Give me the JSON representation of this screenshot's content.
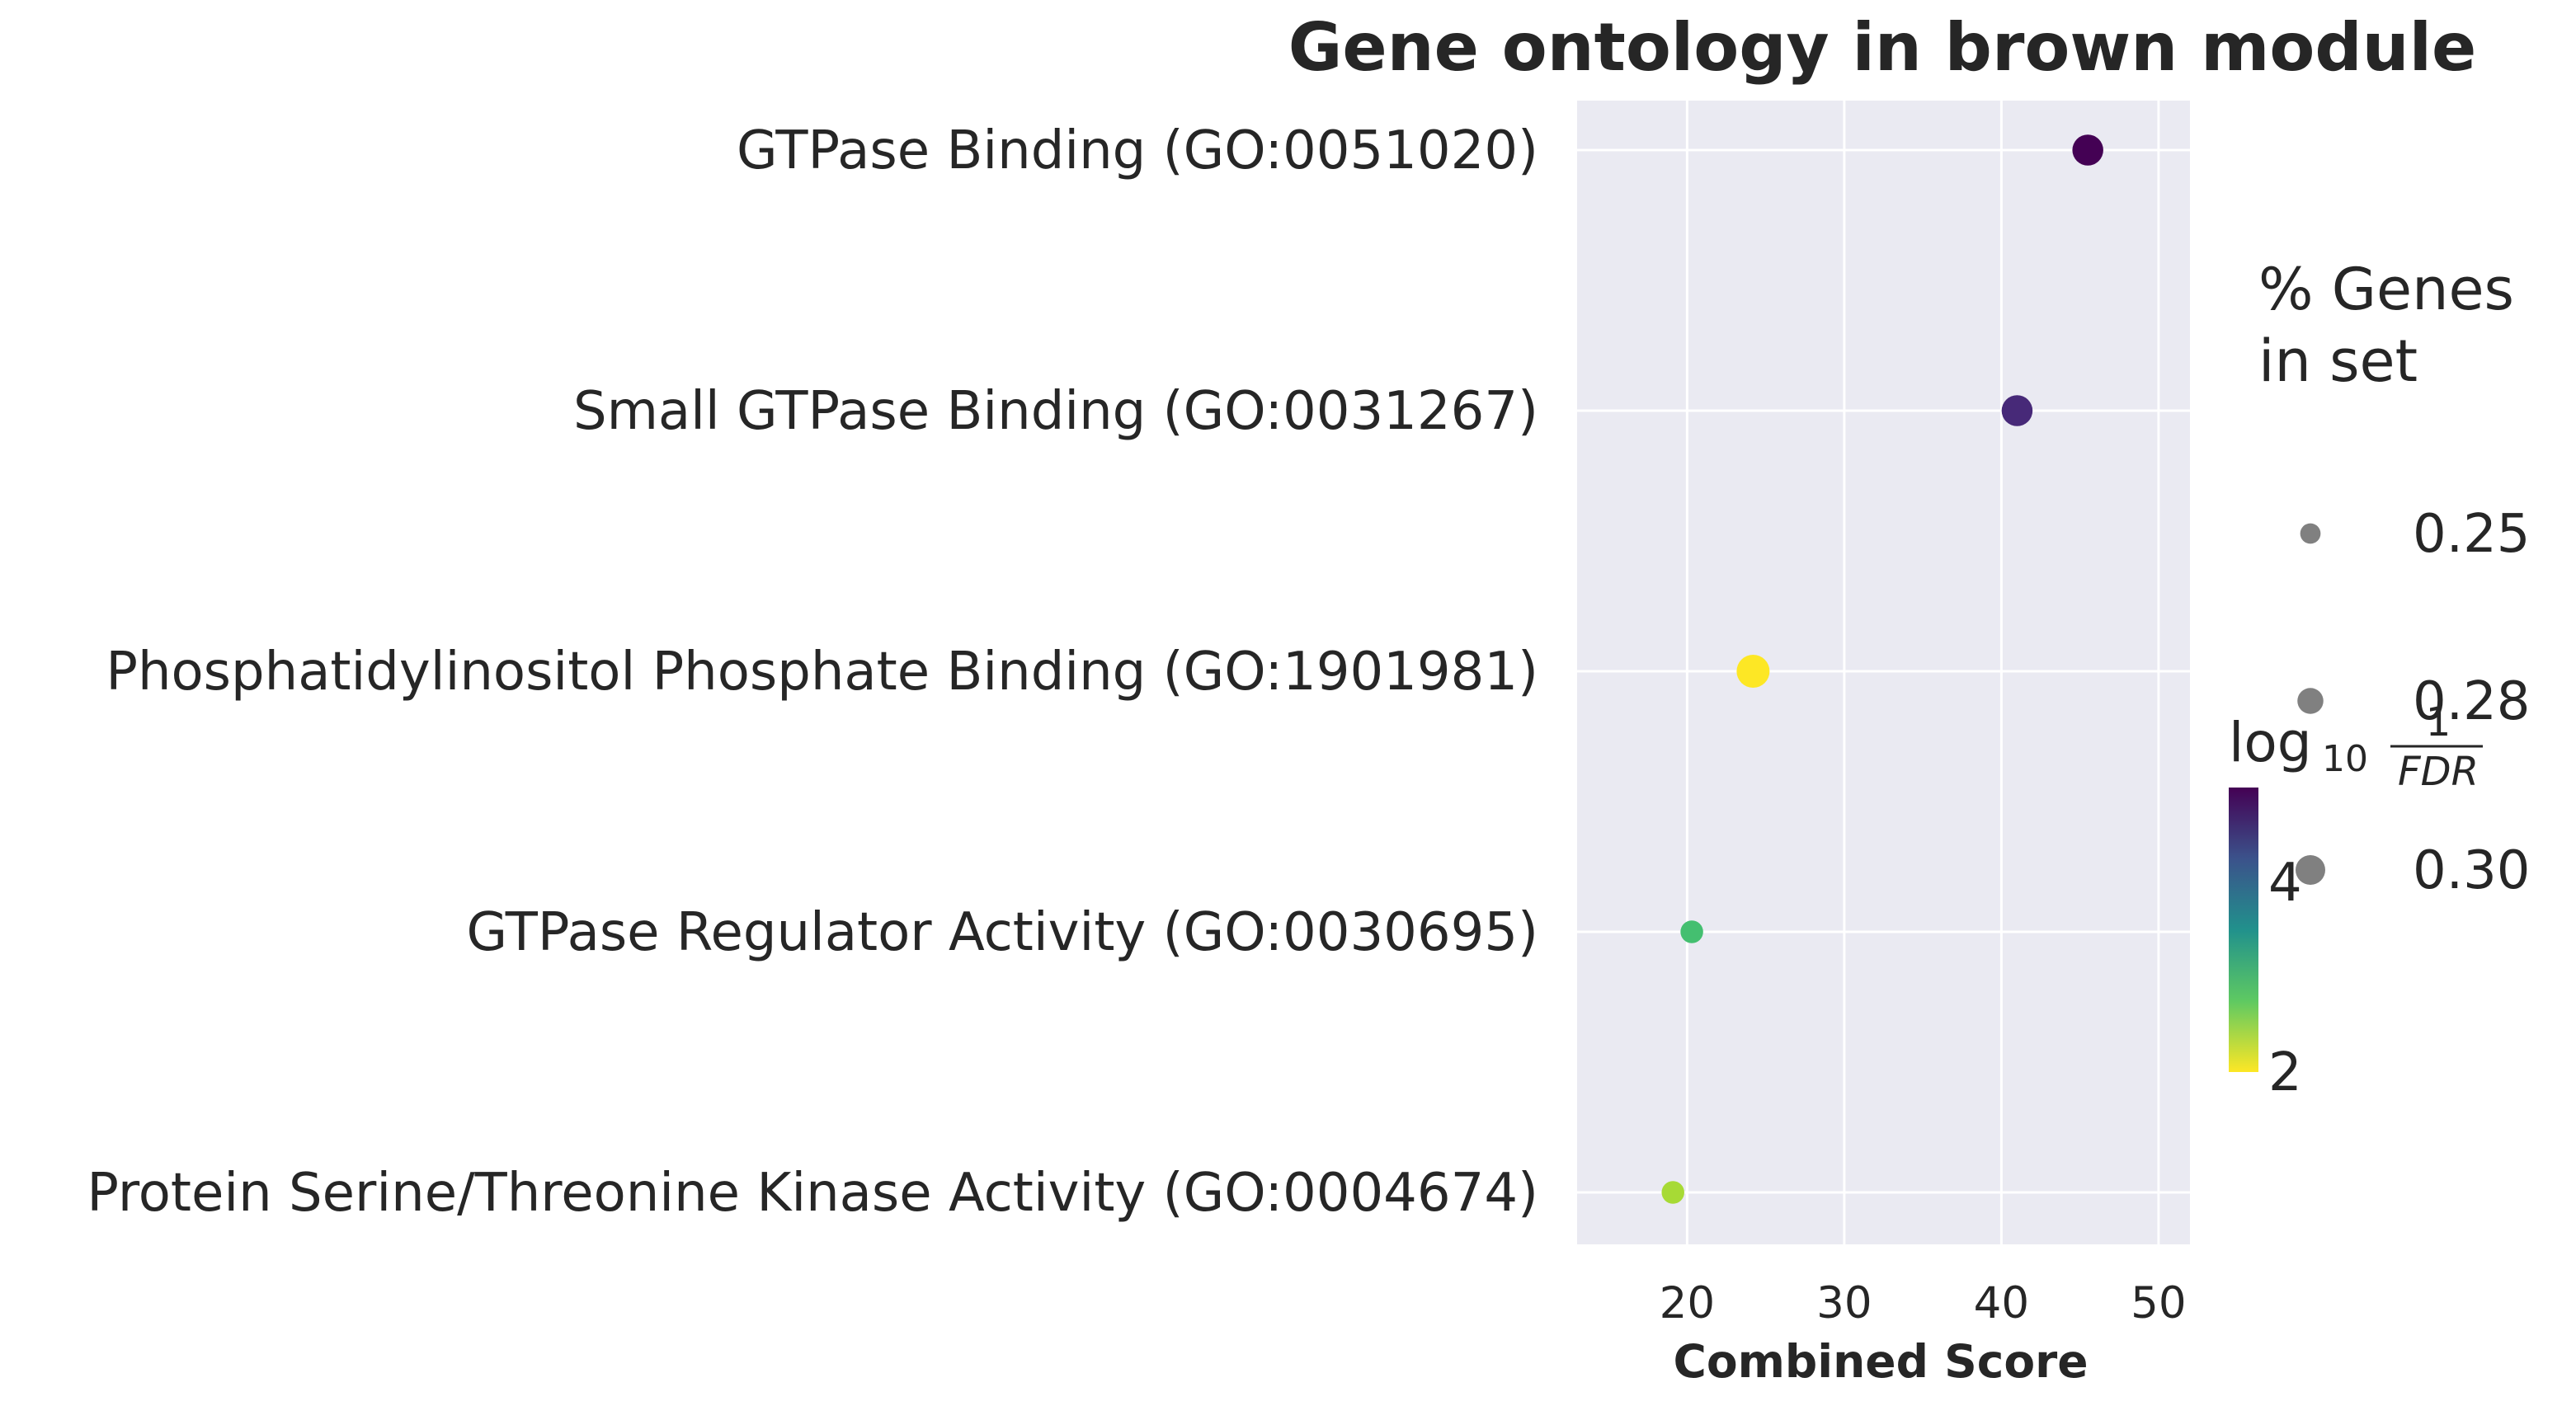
{
  "chart_data": {
    "type": "scatter",
    "title": "Gene ontology in brown module",
    "xlabel": "Combined Score",
    "ylabel": "",
    "xlim": [
      13,
      52
    ],
    "xticks": [
      20,
      30,
      40,
      50
    ],
    "grid": true,
    "categories": [
      "GTPase Binding (GO:0051020)",
      "Small GTPase Binding (GO:0031267)",
      "Phosphatidylinositol Phosphate Binding (GO:1901981)",
      "GTPase Regulator Activity (GO:0030695)",
      "Protein Serine/Threonine Kinase Activity (GO:0004674)"
    ],
    "points": [
      {
        "category": "GTPase Binding (GO:0051020)",
        "x": 45.5,
        "pct_genes": 0.29,
        "log10_inv_fdr": 5.0
      },
      {
        "category": "Small GTPase Binding (GO:0031267)",
        "x": 41.0,
        "pct_genes": 0.29,
        "log10_inv_fdr": 4.65
      },
      {
        "category": "Phosphatidylinositol Phosphate Binding (GO:1901981)",
        "x": 24.2,
        "pct_genes": 0.3,
        "log10_inv_fdr": 2.0
      },
      {
        "category": "GTPase Regulator Activity (GO:0030695)",
        "x": 20.3,
        "pct_genes": 0.25,
        "log10_inv_fdr": 2.9
      },
      {
        "category": "Protein Serine/Threonine Kinase Activity (GO:0004674)",
        "x": 19.1,
        "pct_genes": 0.25,
        "log10_inv_fdr": 2.4
      }
    ],
    "size_legend": {
      "title_lines": [
        "% Genes",
        "in set"
      ],
      "entries": [
        {
          "label": "0.25",
          "value": 0.25
        },
        {
          "label": "0.28",
          "value": 0.28
        },
        {
          "label": "0.30",
          "value": 0.3
        }
      ],
      "marker_color": "#808080"
    },
    "colorbar": {
      "title_prefix": "log",
      "title_subscript": "10",
      "frac_numerator": "1",
      "frac_denominator": "FDR",
      "range": [
        2,
        5
      ],
      "ticks": [
        {
          "label": "2",
          "value": 2
        },
        {
          "label": "4",
          "value": 4
        }
      ],
      "colormap": "viridis_r"
    },
    "colors": {
      "plot_bg": "#eaeaf2",
      "grid": "#ffffff",
      "text": "#262626"
    }
  }
}
